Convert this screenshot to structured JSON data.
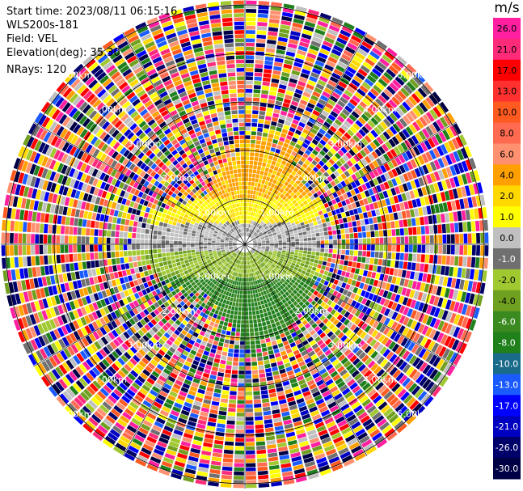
{
  "info": {
    "start_time": "Start time: 2023/08/11 06:15:16",
    "instrument": "WLS200s-181",
    "field": "Field: VEL",
    "elevation": "Elevation(deg): 35.30",
    "nrays": "NRays: 120"
  },
  "chart_data": {
    "type": "heatmap",
    "subtype": "polar PPI radar display",
    "field": "VEL",
    "unit": "m/s",
    "nrays": 120,
    "range_ring_labels": [
      "1.00km",
      "2.00km",
      "3.00km",
      "4.00km",
      "5.00km"
    ],
    "range_ring_label_positions": [
      "top-left",
      "top-right",
      "bottom-left",
      "bottom-right"
    ],
    "colorbar": {
      "unit": "m/s",
      "ticks": [
        "26.0",
        "21.0",
        "17.0",
        "13.0",
        "10.0",
        "8.0",
        "6.0",
        "4.0",
        "2.0",
        "1.0",
        "0.0",
        "-1.0",
        "-2.0",
        "-4.0",
        "-6.0",
        "-8.0",
        "-10.0",
        "-13.0",
        "-17.0",
        "-21.0",
        "-26.0",
        "-30.0"
      ],
      "colors": [
        "#ff1fa0",
        "#ff2a7a",
        "#ff0000",
        "#ff3030",
        "#ff5a20",
        "#ff6a50",
        "#ff9070",
        "#ffa000",
        "#ffd800",
        "#ffff00",
        "#c0c0c0",
        "#707070",
        "#a0c830",
        "#70a020",
        "#3a8a20",
        "#20801c",
        "#1a6a8a",
        "#1a5aff",
        "#0000ff",
        "#0000c0",
        "#00006a",
        "#000044"
      ]
    },
    "near_field_pattern": {
      "north_sector": "positive velocities (yellow/orange, ~2 to 6 m/s)",
      "center_band": "near zero (grey)",
      "south_sector": "negative velocities (green, ~-2 to -6 m/s)"
    },
    "far_field": "noise (random colors across full velocity range)"
  }
}
